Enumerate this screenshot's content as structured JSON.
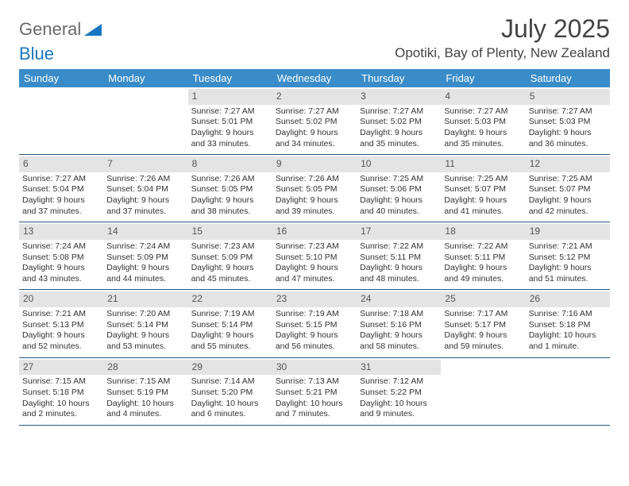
{
  "logo": {
    "text1": "General",
    "text2": "Blue"
  },
  "title": "July 2025",
  "subtitle": "Opotiki, Bay of Plenty, New Zealand",
  "day_names": [
    "Sunday",
    "Monday",
    "Tuesday",
    "Wednesday",
    "Thursday",
    "Friday",
    "Saturday"
  ],
  "colors": {
    "header_bg": "#3a8cc9",
    "header_fg": "#ffffff",
    "rule": "#2d5a7f",
    "daynum_bg": "#e4e4e4",
    "logo_gray": "#6a6a6a",
    "logo_blue": "#1976c1"
  },
  "weeks": [
    [
      {
        "day": "",
        "sunrise": "",
        "sunset": "",
        "daylight1": "",
        "daylight2": ""
      },
      {
        "day": "",
        "sunrise": "",
        "sunset": "",
        "daylight1": "",
        "daylight2": ""
      },
      {
        "day": "1",
        "sunrise": "Sunrise: 7:27 AM",
        "sunset": "Sunset: 5:01 PM",
        "daylight1": "Daylight: 9 hours",
        "daylight2": "and 33 minutes."
      },
      {
        "day": "2",
        "sunrise": "Sunrise: 7:27 AM",
        "sunset": "Sunset: 5:02 PM",
        "daylight1": "Daylight: 9 hours",
        "daylight2": "and 34 minutes."
      },
      {
        "day": "3",
        "sunrise": "Sunrise: 7:27 AM",
        "sunset": "Sunset: 5:02 PM",
        "daylight1": "Daylight: 9 hours",
        "daylight2": "and 35 minutes."
      },
      {
        "day": "4",
        "sunrise": "Sunrise: 7:27 AM",
        "sunset": "Sunset: 5:03 PM",
        "daylight1": "Daylight: 9 hours",
        "daylight2": "and 35 minutes."
      },
      {
        "day": "5",
        "sunrise": "Sunrise: 7:27 AM",
        "sunset": "Sunset: 5:03 PM",
        "daylight1": "Daylight: 9 hours",
        "daylight2": "and 36 minutes."
      }
    ],
    [
      {
        "day": "6",
        "sunrise": "Sunrise: 7:27 AM",
        "sunset": "Sunset: 5:04 PM",
        "daylight1": "Daylight: 9 hours",
        "daylight2": "and 37 minutes."
      },
      {
        "day": "7",
        "sunrise": "Sunrise: 7:26 AM",
        "sunset": "Sunset: 5:04 PM",
        "daylight1": "Daylight: 9 hours",
        "daylight2": "and 37 minutes."
      },
      {
        "day": "8",
        "sunrise": "Sunrise: 7:26 AM",
        "sunset": "Sunset: 5:05 PM",
        "daylight1": "Daylight: 9 hours",
        "daylight2": "and 38 minutes."
      },
      {
        "day": "9",
        "sunrise": "Sunrise: 7:26 AM",
        "sunset": "Sunset: 5:05 PM",
        "daylight1": "Daylight: 9 hours",
        "daylight2": "and 39 minutes."
      },
      {
        "day": "10",
        "sunrise": "Sunrise: 7:25 AM",
        "sunset": "Sunset: 5:06 PM",
        "daylight1": "Daylight: 9 hours",
        "daylight2": "and 40 minutes."
      },
      {
        "day": "11",
        "sunrise": "Sunrise: 7:25 AM",
        "sunset": "Sunset: 5:07 PM",
        "daylight1": "Daylight: 9 hours",
        "daylight2": "and 41 minutes."
      },
      {
        "day": "12",
        "sunrise": "Sunrise: 7:25 AM",
        "sunset": "Sunset: 5:07 PM",
        "daylight1": "Daylight: 9 hours",
        "daylight2": "and 42 minutes."
      }
    ],
    [
      {
        "day": "13",
        "sunrise": "Sunrise: 7:24 AM",
        "sunset": "Sunset: 5:08 PM",
        "daylight1": "Daylight: 9 hours",
        "daylight2": "and 43 minutes."
      },
      {
        "day": "14",
        "sunrise": "Sunrise: 7:24 AM",
        "sunset": "Sunset: 5:09 PM",
        "daylight1": "Daylight: 9 hours",
        "daylight2": "and 44 minutes."
      },
      {
        "day": "15",
        "sunrise": "Sunrise: 7:23 AM",
        "sunset": "Sunset: 5:09 PM",
        "daylight1": "Daylight: 9 hours",
        "daylight2": "and 45 minutes."
      },
      {
        "day": "16",
        "sunrise": "Sunrise: 7:23 AM",
        "sunset": "Sunset: 5:10 PM",
        "daylight1": "Daylight: 9 hours",
        "daylight2": "and 47 minutes."
      },
      {
        "day": "17",
        "sunrise": "Sunrise: 7:22 AM",
        "sunset": "Sunset: 5:11 PM",
        "daylight1": "Daylight: 9 hours",
        "daylight2": "and 48 minutes."
      },
      {
        "day": "18",
        "sunrise": "Sunrise: 7:22 AM",
        "sunset": "Sunset: 5:11 PM",
        "daylight1": "Daylight: 9 hours",
        "daylight2": "and 49 minutes."
      },
      {
        "day": "19",
        "sunrise": "Sunrise: 7:21 AM",
        "sunset": "Sunset: 5:12 PM",
        "daylight1": "Daylight: 9 hours",
        "daylight2": "and 51 minutes."
      }
    ],
    [
      {
        "day": "20",
        "sunrise": "Sunrise: 7:21 AM",
        "sunset": "Sunset: 5:13 PM",
        "daylight1": "Daylight: 9 hours",
        "daylight2": "and 52 minutes."
      },
      {
        "day": "21",
        "sunrise": "Sunrise: 7:20 AM",
        "sunset": "Sunset: 5:14 PM",
        "daylight1": "Daylight: 9 hours",
        "daylight2": "and 53 minutes."
      },
      {
        "day": "22",
        "sunrise": "Sunrise: 7:19 AM",
        "sunset": "Sunset: 5:14 PM",
        "daylight1": "Daylight: 9 hours",
        "daylight2": "and 55 minutes."
      },
      {
        "day": "23",
        "sunrise": "Sunrise: 7:19 AM",
        "sunset": "Sunset: 5:15 PM",
        "daylight1": "Daylight: 9 hours",
        "daylight2": "and 56 minutes."
      },
      {
        "day": "24",
        "sunrise": "Sunrise: 7:18 AM",
        "sunset": "Sunset: 5:16 PM",
        "daylight1": "Daylight: 9 hours",
        "daylight2": "and 58 minutes."
      },
      {
        "day": "25",
        "sunrise": "Sunrise: 7:17 AM",
        "sunset": "Sunset: 5:17 PM",
        "daylight1": "Daylight: 9 hours",
        "daylight2": "and 59 minutes."
      },
      {
        "day": "26",
        "sunrise": "Sunrise: 7:16 AM",
        "sunset": "Sunset: 5:18 PM",
        "daylight1": "Daylight: 10 hours",
        "daylight2": "and 1 minute."
      }
    ],
    [
      {
        "day": "27",
        "sunrise": "Sunrise: 7:15 AM",
        "sunset": "Sunset: 5:18 PM",
        "daylight1": "Daylight: 10 hours",
        "daylight2": "and 2 minutes."
      },
      {
        "day": "28",
        "sunrise": "Sunrise: 7:15 AM",
        "sunset": "Sunset: 5:19 PM",
        "daylight1": "Daylight: 10 hours",
        "daylight2": "and 4 minutes."
      },
      {
        "day": "29",
        "sunrise": "Sunrise: 7:14 AM",
        "sunset": "Sunset: 5:20 PM",
        "daylight1": "Daylight: 10 hours",
        "daylight2": "and 6 minutes."
      },
      {
        "day": "30",
        "sunrise": "Sunrise: 7:13 AM",
        "sunset": "Sunset: 5:21 PM",
        "daylight1": "Daylight: 10 hours",
        "daylight2": "and 7 minutes."
      },
      {
        "day": "31",
        "sunrise": "Sunrise: 7:12 AM",
        "sunset": "Sunset: 5:22 PM",
        "daylight1": "Daylight: 10 hours",
        "daylight2": "and 9 minutes."
      },
      {
        "day": "",
        "sunrise": "",
        "sunset": "",
        "daylight1": "",
        "daylight2": ""
      },
      {
        "day": "",
        "sunrise": "",
        "sunset": "",
        "daylight1": "",
        "daylight2": ""
      }
    ]
  ]
}
